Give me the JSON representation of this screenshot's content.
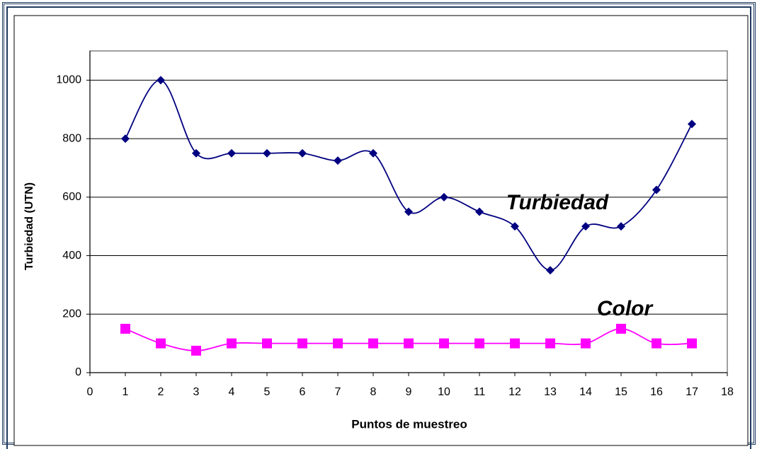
{
  "chart_data": {
    "type": "line",
    "xlabel": "Puntos de muestreo",
    "ylabel": "Turbiedad (UTN)",
    "x": [
      1,
      2,
      3,
      4,
      5,
      6,
      7,
      8,
      9,
      10,
      11,
      12,
      13,
      14,
      15,
      16,
      17
    ],
    "series": [
      {
        "name": "Turbiedad",
        "color": "#000080",
        "marker": "diamond",
        "values": [
          800,
          1000,
          750,
          750,
          750,
          750,
          725,
          750,
          550,
          600,
          550,
          500,
          350,
          500,
          500,
          625,
          850
        ]
      },
      {
        "name": "Color",
        "color": "#ff00ff",
        "marker": "square",
        "values": [
          150,
          100,
          75,
          100,
          100,
          100,
          100,
          100,
          100,
          100,
          100,
          100,
          100,
          100,
          150,
          100,
          100
        ]
      }
    ],
    "xlim": [
      0,
      18
    ],
    "xticks": [
      0,
      1,
      2,
      3,
      4,
      5,
      6,
      7,
      8,
      9,
      10,
      11,
      12,
      13,
      14,
      15,
      16,
      17,
      18
    ],
    "ylim": [
      0,
      1100
    ],
    "yticks": [
      0,
      200,
      400,
      600,
      800,
      1000
    ],
    "grid": true,
    "smooth": true
  }
}
